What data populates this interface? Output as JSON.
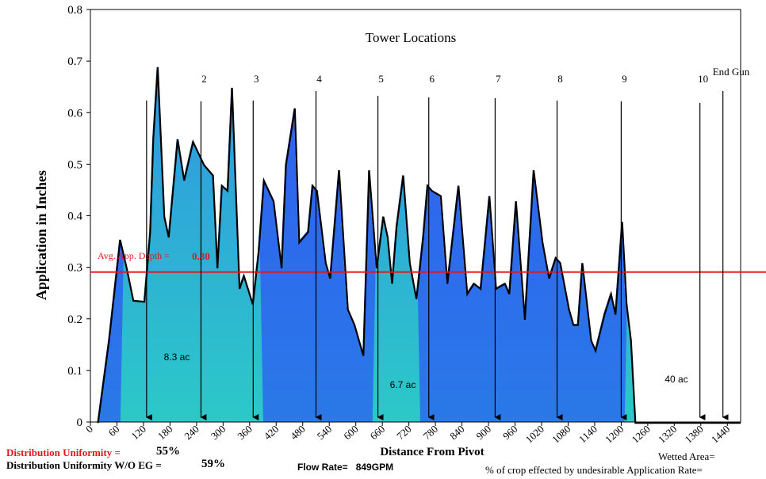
{
  "chart_data": {
    "type": "area",
    "title": "Tower Locations",
    "ylabel": "Application in Inches",
    "xlabel": "Distance From Pivot",
    "xlim": [
      0,
      1470
    ],
    "ylim": [
      0,
      0.8
    ],
    "y_ticks": [
      "0",
      "0.1",
      "0.2",
      "0.3",
      "0.4",
      "0.5",
      "0.6",
      "0.7",
      "0.8"
    ],
    "x_ticks": [
      "0",
      "60",
      "120",
      "180",
      "240",
      "300",
      "360",
      "420",
      "480",
      "540",
      "600",
      "660",
      "720",
      "780",
      "840",
      "900",
      "960",
      "1020",
      "1080",
      "1140",
      "1200",
      "1260",
      "1320",
      "1380",
      "1440"
    ],
    "grid": false,
    "series": [
      {
        "x": [
          15,
          40,
          65,
          80,
          95,
          120,
          133,
          140,
          150,
          165,
          175,
          195,
          210,
          230,
          255,
          275,
          285,
          295,
          308,
          318,
          335,
          345,
          365,
          378,
          390,
          412,
          430,
          440,
          460,
          470,
          490,
          500,
          510,
          530,
          540,
          560,
          580,
          595,
          615,
          628,
          645,
          660,
          670,
          680,
          690,
          705,
          720,
          735,
          750,
          760,
          770,
          790,
          805,
          830,
          850,
          865,
          880,
          900,
          915,
          935,
          945,
          960,
          980,
          1000,
          1020,
          1035,
          1050,
          1060,
          1080,
          1090,
          1100,
          1110,
          1130,
          1140,
          1160,
          1175,
          1185,
          1200,
          1210,
          1220,
          1230,
          1240,
          1250,
          1260,
          1275,
          1290,
          1305,
          1330,
          1360,
          1370,
          1380,
          1400,
          1415,
          1440,
          1468
        ],
        "values": [
          0.0,
          0.16,
          0.355,
          0.3,
          0.237,
          0.235,
          0.37,
          0.55,
          0.69,
          0.4,
          0.36,
          0.55,
          0.47,
          0.545,
          0.5,
          0.48,
          0.3,
          0.46,
          0.45,
          0.65,
          0.26,
          0.285,
          0.23,
          0.33,
          0.47,
          0.43,
          0.3,
          0.5,
          0.61,
          0.35,
          0.37,
          0.46,
          0.45,
          0.31,
          0.28,
          0.49,
          0.22,
          0.19,
          0.13,
          0.49,
          0.3,
          0.4,
          0.36,
          0.27,
          0.38,
          0.48,
          0.31,
          0.24,
          0.36,
          0.46,
          0.45,
          0.44,
          0.27,
          0.46,
          0.25,
          0.27,
          0.26,
          0.44,
          0.26,
          0.27,
          0.25,
          0.43,
          0.2,
          0.49,
          0.35,
          0.28,
          0.32,
          0.31,
          0.22,
          0.19,
          0.19,
          0.31,
          0.16,
          0.14,
          0.21,
          0.25,
          0.21,
          0.39,
          0.23,
          0.16,
          0.0,
          0.0,
          0.0,
          0.0,
          0.0,
          0.0,
          0.0,
          0.0,
          0.0,
          0.0,
          0.0,
          0.0,
          0.0,
          0.0,
          0.0
        ]
      }
    ],
    "average_line": {
      "label": "Avg. App. Depth =",
      "value_label": "0.30",
      "y": 0.3,
      "color": "#e0191f"
    },
    "zones": [
      {
        "label": "8.3 ac",
        "x_start": 75,
        "x_end": 380
      },
      {
        "label": "6.7 ac",
        "x_start": 645,
        "x_end": 735
      },
      {
        "label": "40 ac",
        "x_start": 1215,
        "x_end": 1470
      }
    ],
    "towers": [
      {
        "label": "",
        "x": 127
      },
      {
        "label": "2",
        "x": 250
      },
      {
        "label": "3",
        "x": 368
      },
      {
        "label": "4",
        "x": 510
      },
      {
        "label": "5",
        "x": 650
      },
      {
        "label": "6",
        "x": 765
      },
      {
        "label": "7",
        "x": 915
      },
      {
        "label": "8",
        "x": 1055
      },
      {
        "label": "9",
        "x": 1200
      },
      {
        "label": "10",
        "x": 1378
      },
      {
        "label": "End Gun",
        "x": 1430
      }
    ],
    "colors": {
      "fill_top": "#2f5ef0",
      "fill_bottom": "#2a79e8",
      "zone_top": "#2f8de6",
      "zone_bottom": "#2cc9c8",
      "outline": "#000000",
      "avg_line": "#e0191f"
    }
  },
  "footer": {
    "du_label": "Distribution Uniformity  =",
    "du_value": "55%",
    "du_eg_label": "Distribution Uniformity W/O EG =",
    "du_eg_value": "59%",
    "flow_label": "Flow Rate=",
    "flow_value": "849",
    "flow_unit": "GPM",
    "wetted_area": "Wetted Area=",
    "crop_effected": "% of crop effected by undesirable Application Rate="
  }
}
